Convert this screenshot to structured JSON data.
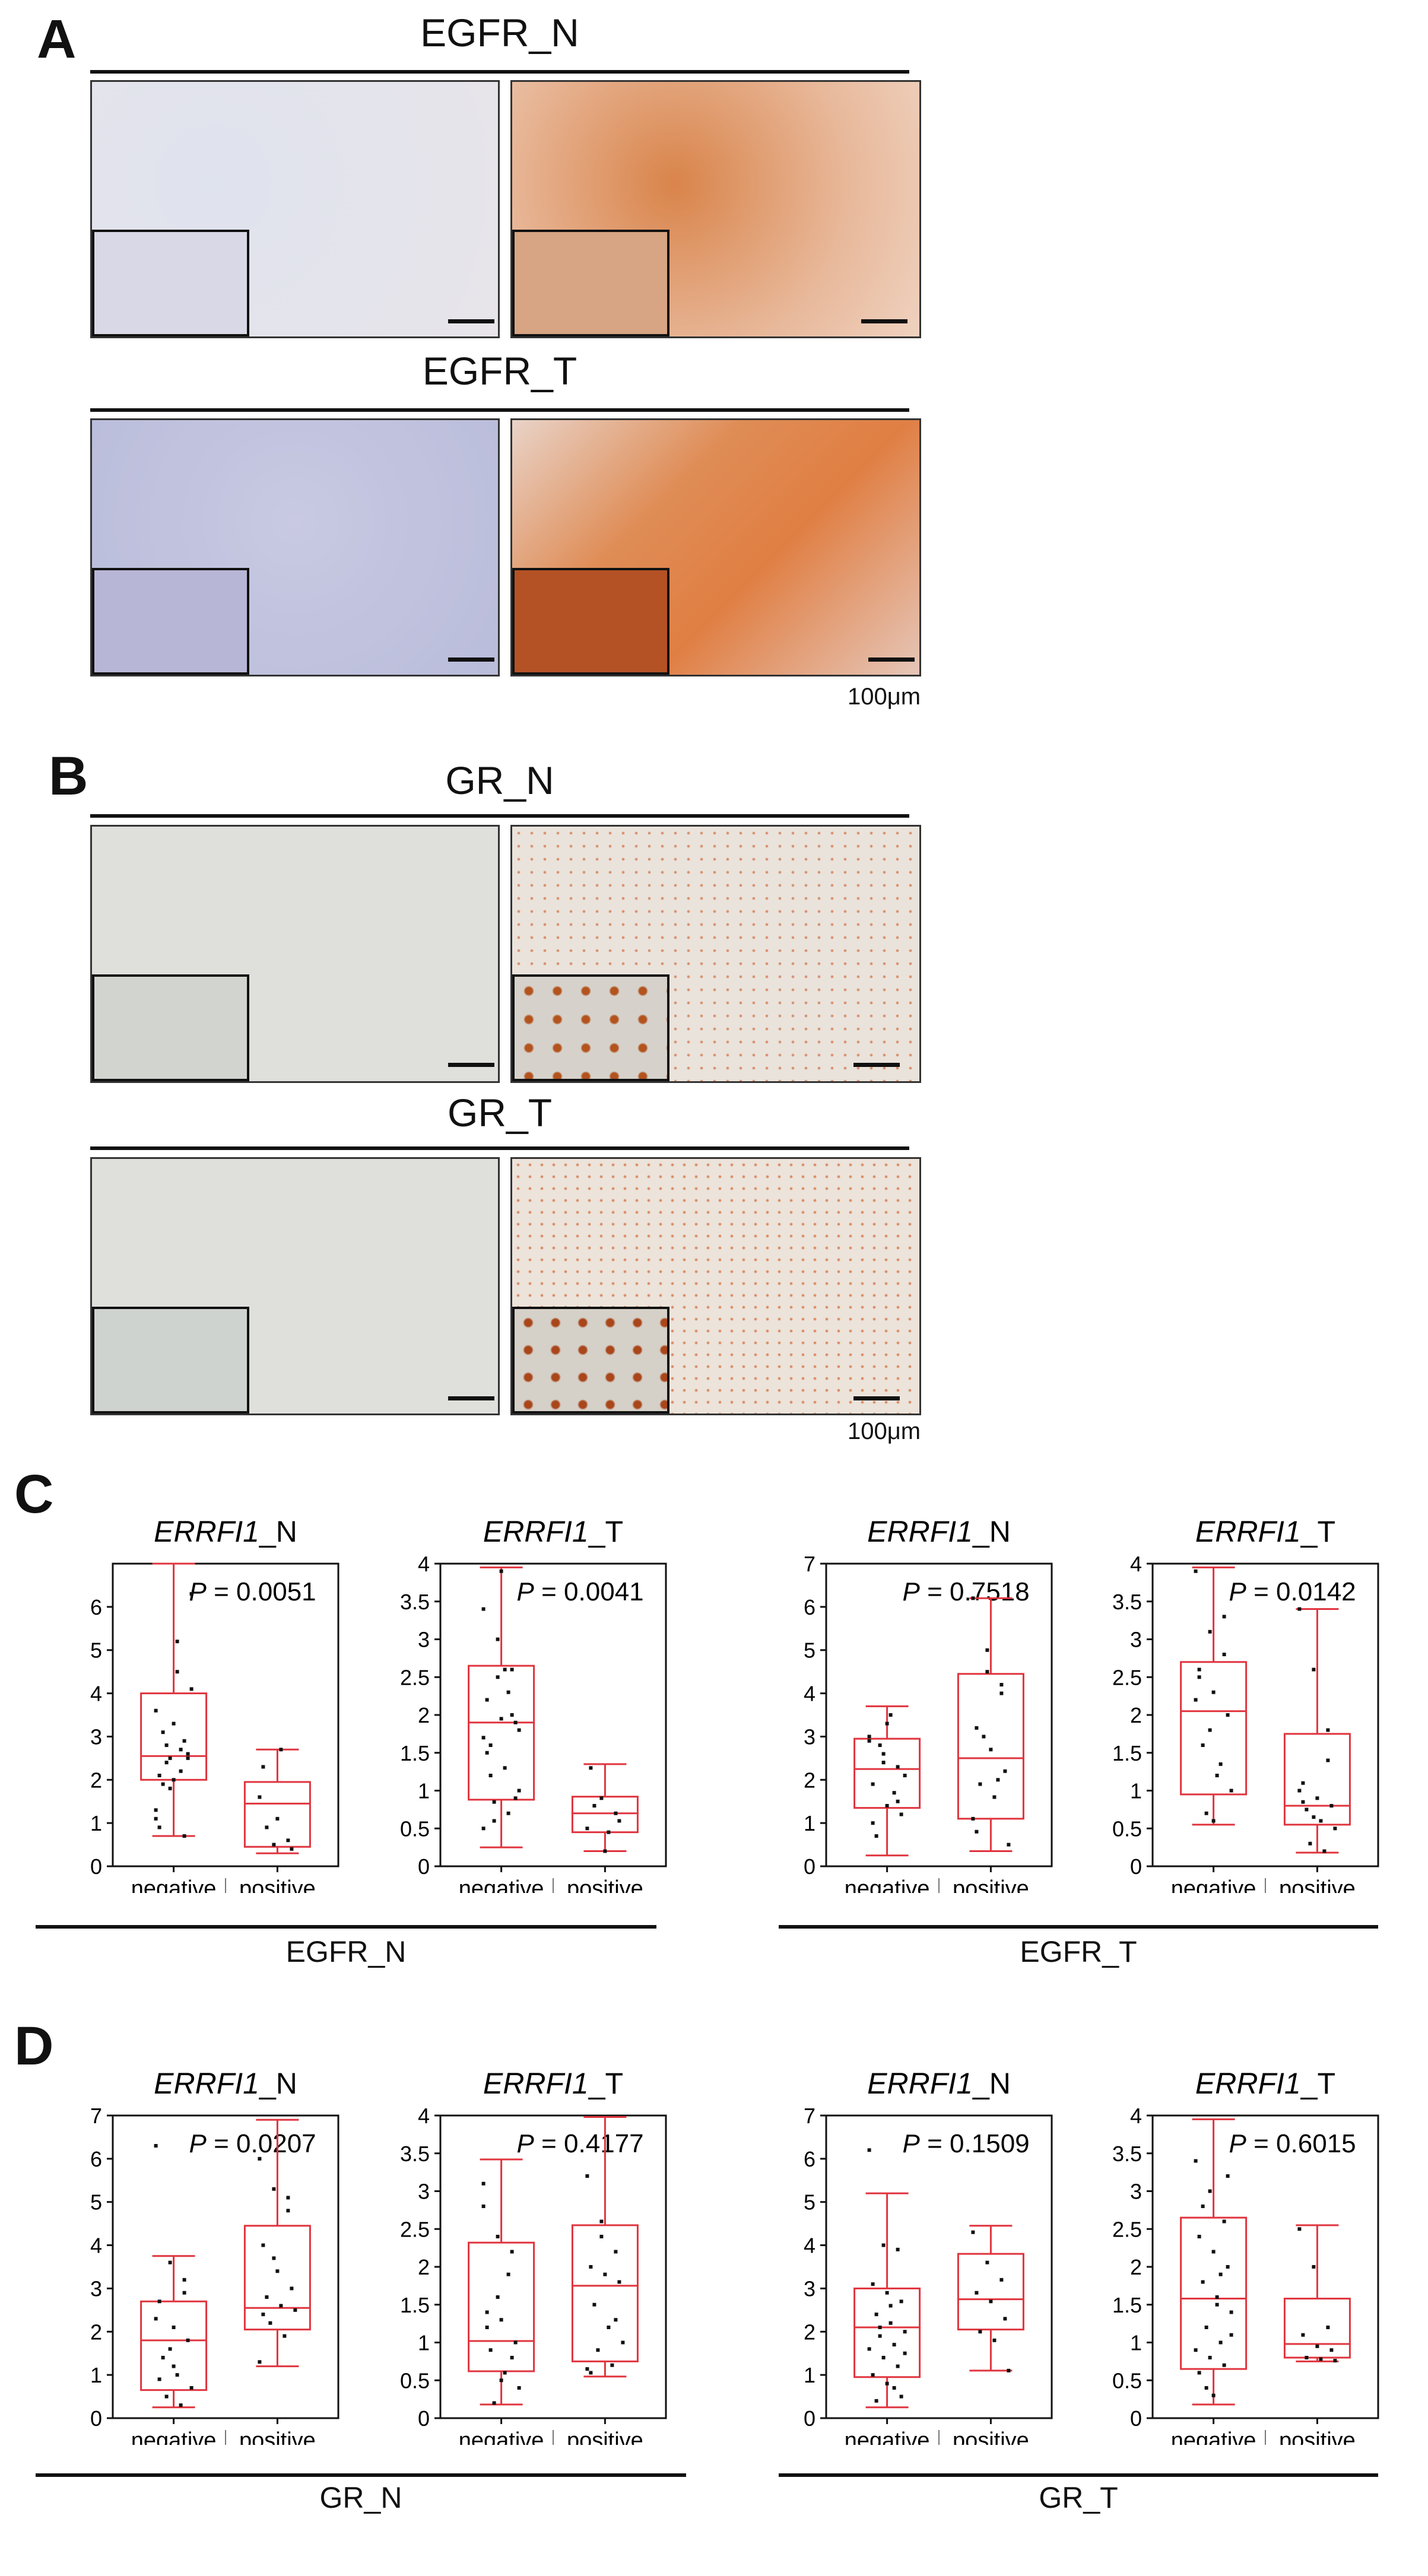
{
  "panel_a": {
    "letter": "A",
    "rows": [
      {
        "header": "EGFR_N",
        "images": [
          {
            "stain": "negative",
            "tone": "blue"
          },
          {
            "stain": "positive",
            "tone": "brown"
          }
        ]
      },
      {
        "header": "EGFR_T",
        "images": [
          {
            "stain": "negative",
            "tone": "blue"
          },
          {
            "stain": "positive",
            "tone": "brown"
          }
        ]
      }
    ],
    "scale_label": "100μm"
  },
  "panel_b": {
    "letter": "B",
    "rows": [
      {
        "header": "GR_N",
        "images": [
          {
            "stain": "negative",
            "tone": "grey"
          },
          {
            "stain": "positive",
            "tone": "nuclear"
          }
        ]
      },
      {
        "header": "GR_T",
        "images": [
          {
            "stain": "negative",
            "tone": "grey"
          },
          {
            "stain": "positive",
            "tone": "nuclear"
          }
        ]
      }
    ],
    "scale_label": "100μm"
  },
  "panel_c": {
    "letter": "C",
    "groups": [
      {
        "label": "EGFR_N"
      },
      {
        "label": "EGFR_T"
      }
    ]
  },
  "panel_d": {
    "letter": "D",
    "groups": [
      {
        "label": "GR_N"
      },
      {
        "label": "GR_T"
      }
    ]
  },
  "colors": {
    "box": "#e0343e",
    "points": "#111111",
    "frame": "#111111"
  },
  "chart_data": [
    {
      "type": "box",
      "panel": "C",
      "title_gene": "ERRFI1",
      "title_suffix": "_N",
      "pvalue": "P = 0.0051",
      "ylim": [
        0,
        7
      ],
      "yticks": [
        "0",
        "1",
        "2",
        "3",
        "4",
        "5",
        "6"
      ],
      "categories": [
        "negative",
        "positive"
      ],
      "n": [
        "23",
        "8"
      ],
      "boxes": [
        {
          "min": 0.7,
          "q1": 2.0,
          "median": 2.55,
          "q3": 4.0,
          "max": 7.0
        },
        {
          "min": 0.3,
          "q1": 0.45,
          "median": 1.45,
          "q3": 1.95,
          "max": 2.7
        }
      ],
      "points": [
        [
          3.6,
          2.5,
          2.9,
          2.1,
          2.0,
          2.6,
          3.1,
          4.5,
          4.1,
          2.4,
          2.2,
          1.1,
          1.8,
          0.7,
          0.9,
          3.3,
          2.5,
          1.9,
          5.2,
          6.3,
          2.8,
          2.7,
          1.3
        ],
        [
          1.6,
          0.5,
          0.6,
          2.3,
          1.1,
          0.4,
          0.9,
          2.7
        ]
      ]
    },
    {
      "type": "box",
      "panel": "C",
      "title_gene": "ERRFI1",
      "title_suffix": "_T",
      "pvalue": "P = 0.0041",
      "ylim": [
        0,
        4
      ],
      "yticks": [
        "0",
        "0.5",
        "1",
        "1.5",
        "2",
        "2.5",
        "3",
        "3.5",
        "4"
      ],
      "categories": [
        "negative",
        "positive"
      ],
      "n": [
        "23",
        "8"
      ],
      "boxes": [
        {
          "min": 0.25,
          "q1": 0.88,
          "median": 1.9,
          "q3": 2.65,
          "max": 3.95
        },
        {
          "min": 0.2,
          "q1": 0.45,
          "median": 0.7,
          "q3": 0.92,
          "max": 1.35
        }
      ],
      "points": [
        [
          3.4,
          3.0,
          2.6,
          2.2,
          1.95,
          1.9,
          1.6,
          1.3,
          1.0,
          0.85,
          0.7,
          0.5,
          2.5,
          2.0,
          1.5,
          3.9,
          0.9,
          1.2,
          2.6,
          1.8,
          0.6,
          2.3,
          1.7
        ],
        [
          0.5,
          0.9,
          0.7,
          1.3,
          0.2,
          0.6,
          0.8,
          0.45
        ]
      ]
    },
    {
      "type": "box",
      "panel": "C",
      "title_gene": "ERRFI1",
      "title_suffix": "_N",
      "pvalue": "P = 0.7518",
      "ylim": [
        0,
        7
      ],
      "yticks": [
        "0",
        "1",
        "2",
        "3",
        "4",
        "5",
        "6",
        "7"
      ],
      "categories": [
        "negative",
        "positive"
      ],
      "n": [
        "16",
        "15"
      ],
      "boxes": [
        {
          "min": 0.25,
          "q1": 1.35,
          "median": 2.25,
          "q3": 2.95,
          "max": 3.7
        },
        {
          "min": 0.35,
          "q1": 1.1,
          "median": 2.5,
          "q3": 4.45,
          "max": 6.2
        }
      ],
      "points": [
        [
          2.9,
          2.6,
          2.3,
          1.9,
          1.4,
          1.2,
          0.7,
          3.5,
          2.1,
          2.8,
          1.7,
          3.0,
          2.4,
          1.5,
          1.0,
          3.3
        ],
        [
          6.2,
          4.5,
          4.2,
          3.2,
          2.7,
          2.2,
          1.9,
          1.6,
          0.5,
          3.0,
          2.0,
          1.1,
          5.0,
          4.0,
          0.8
        ]
      ]
    },
    {
      "type": "box",
      "panel": "C",
      "title_gene": "ERRFI1",
      "title_suffix": "_T",
      "pvalue": "P = 0.0142",
      "ylim": [
        0,
        4
      ],
      "yticks": [
        "0",
        "0.5",
        "1",
        "1.5",
        "2",
        "2.5",
        "3",
        "3.5",
        "4"
      ],
      "categories": [
        "negative",
        "positive"
      ],
      "n": [
        "16",
        "15"
      ],
      "boxes": [
        {
          "min": 0.55,
          "q1": 0.95,
          "median": 2.05,
          "q3": 2.7,
          "max": 3.95
        },
        {
          "min": 0.18,
          "q1": 0.55,
          "median": 0.8,
          "q3": 1.75,
          "max": 3.4
        }
      ],
      "points": [
        [
          3.9,
          3.1,
          2.8,
          2.6,
          2.3,
          2.0,
          1.6,
          1.2,
          1.0,
          0.7,
          1.35,
          2.2,
          1.8,
          3.3,
          2.5,
          0.6
        ],
        [
          3.4,
          2.6,
          1.8,
          1.1,
          0.9,
          0.8,
          0.75,
          0.6,
          0.5,
          0.3,
          0.2,
          1.0,
          0.65,
          1.4,
          0.85
        ]
      ]
    },
    {
      "type": "box",
      "panel": "D",
      "title_gene": "ERRFI1",
      "title_suffix": "_N",
      "pvalue": "P = 0.0207",
      "ylim": [
        0,
        7
      ],
      "yticks": [
        "0",
        "1",
        "2",
        "3",
        "4",
        "5",
        "6",
        "7"
      ],
      "categories": [
        "negative",
        "positive"
      ],
      "n": [
        "16",
        "15"
      ],
      "boxes": [
        {
          "min": 0.25,
          "q1": 0.65,
          "median": 1.8,
          "q3": 2.7,
          "max": 3.75
        },
        {
          "min": 1.2,
          "q1": 2.05,
          "median": 2.55,
          "q3": 4.45,
          "max": 6.9
        }
      ],
      "points": [
        [
          6.3,
          3.6,
          2.9,
          2.7,
          2.1,
          1.8,
          1.4,
          1.0,
          0.7,
          0.5,
          0.3,
          2.3,
          1.6,
          3.2,
          0.9,
          1.2
        ],
        [
          6.0,
          5.3,
          4.8,
          4.0,
          3.4,
          3.0,
          2.8,
          2.6,
          2.5,
          2.2,
          1.9,
          1.3,
          3.7,
          5.1,
          2.4
        ]
      ]
    },
    {
      "type": "box",
      "panel": "D",
      "title_gene": "ERRFI1",
      "title_suffix": "_T",
      "pvalue": "P = 0.4177",
      "ylim": [
        0,
        4
      ],
      "yticks": [
        "0",
        "0.5",
        "1",
        "1.5",
        "2",
        "2.5",
        "3",
        "3.5",
        "4"
      ],
      "categories": [
        "negative",
        "positive"
      ],
      "n": [
        "16",
        "15"
      ],
      "boxes": [
        {
          "min": 0.18,
          "q1": 0.62,
          "median": 1.02,
          "q3": 2.32,
          "max": 3.42
        },
        {
          "min": 0.55,
          "q1": 0.75,
          "median": 1.75,
          "q3": 2.55,
          "max": 3.98
        }
      ],
      "points": [
        [
          3.1,
          2.4,
          2.2,
          1.4,
          1.3,
          1.0,
          0.9,
          0.6,
          0.4,
          0.2,
          1.9,
          2.8,
          1.6,
          0.8,
          1.2,
          0.5
        ],
        [
          3.2,
          2.6,
          2.2,
          2.0,
          1.9,
          1.8,
          1.5,
          1.2,
          1.0,
          0.9,
          0.7,
          0.65,
          2.4,
          1.3,
          0.6
        ]
      ]
    },
    {
      "type": "box",
      "panel": "D",
      "title_gene": "ERRFI1",
      "title_suffix": "_N",
      "pvalue": "P = 0.1509",
      "ylim": [
        0,
        7
      ],
      "yticks": [
        "0",
        "1",
        "2",
        "3",
        "4",
        "5",
        "6",
        "7"
      ],
      "categories": [
        "negative",
        "positive"
      ],
      "n": [
        "22",
        "9"
      ],
      "boxes": [
        {
          "min": 0.25,
          "q1": 0.95,
          "median": 2.1,
          "q3": 3.0,
          "max": 5.2
        },
        {
          "min": 1.1,
          "q1": 2.05,
          "median": 2.75,
          "q3": 3.8,
          "max": 4.45
        }
      ],
      "points": [
        [
          6.2,
          4.0,
          3.9,
          3.1,
          2.9,
          2.7,
          2.4,
          2.2,
          2.0,
          1.9,
          1.7,
          1.6,
          1.4,
          1.2,
          1.0,
          0.8,
          0.5,
          0.4,
          2.6,
          1.5,
          2.1,
          0.7
        ],
        [
          4.3,
          3.6,
          3.2,
          2.9,
          2.7,
          2.3,
          2.0,
          1.8,
          1.1
        ]
      ]
    },
    {
      "type": "box",
      "panel": "D",
      "title_gene": "ERRFI1",
      "title_suffix": "_T",
      "pvalue": "P = 0.6015",
      "ylim": [
        0,
        4
      ],
      "yticks": [
        "0",
        "0.5",
        "1",
        "1.5",
        "2",
        "2.5",
        "3",
        "3.5",
        "4"
      ],
      "categories": [
        "negative",
        "positive"
      ],
      "n": [
        "22",
        "9"
      ],
      "boxes": [
        {
          "min": 0.18,
          "q1": 0.65,
          "median": 1.58,
          "q3": 2.65,
          "max": 3.95
        },
        {
          "min": 0.75,
          "q1": 0.8,
          "median": 0.98,
          "q3": 1.58,
          "max": 2.55
        }
      ],
      "points": [
        [
          3.4,
          3.0,
          2.6,
          2.4,
          2.2,
          2.0,
          1.8,
          1.6,
          1.4,
          1.2,
          1.0,
          0.9,
          0.8,
          0.7,
          0.6,
          0.3,
          3.2,
          2.8,
          1.5,
          1.1,
          0.4,
          1.9
        ],
        [
          2.5,
          2.0,
          1.2,
          1.1,
          0.95,
          0.9,
          0.8,
          0.78,
          0.76
        ]
      ]
    }
  ]
}
